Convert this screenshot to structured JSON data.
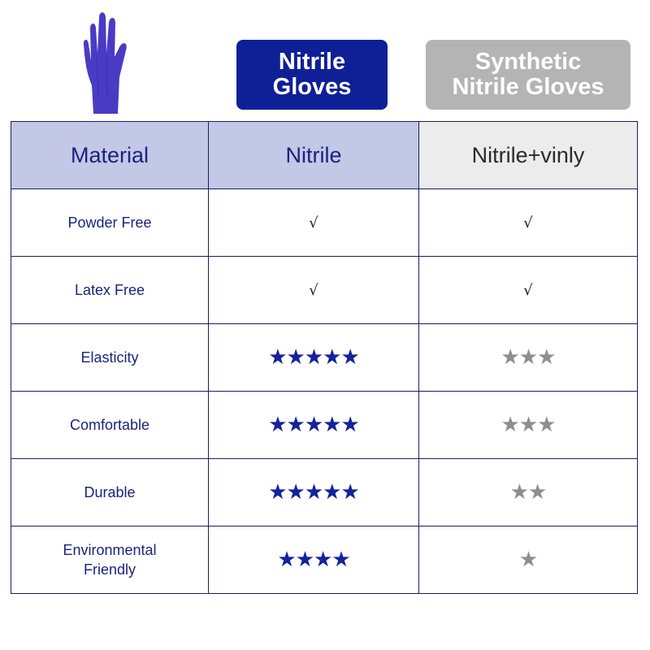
{
  "header": {
    "product_image": "purple-nitrile-glove",
    "col2_title": "Nitrile\nGloves",
    "col3_title": "Synthetic\nNitrile Gloves"
  },
  "colors": {
    "nitrile": "#0f1f96",
    "synthetic": "#b4b4b4",
    "star_blue": "#14229c",
    "star_grey": "#8e8e8e",
    "glove": "#4a3bc4"
  },
  "table": {
    "header": [
      "Material",
      "Nitrile",
      "Nitrile+vinly"
    ],
    "rows": [
      {
        "label": "Powder Free",
        "nitrile": "√",
        "synthetic": "√"
      },
      {
        "label": "Latex Free",
        "nitrile": "√",
        "synthetic": "√"
      },
      {
        "label": "Elasticity",
        "nitrile_stars": 5,
        "synthetic_stars": 3
      },
      {
        "label": "Comfortable",
        "nitrile_stars": 5,
        "synthetic_stars": 3
      },
      {
        "label": "Durable",
        "nitrile_stars": 5,
        "synthetic_stars": 2
      },
      {
        "label": "Environmental\nFriendly",
        "nitrile_stars": 4,
        "synthetic_stars": 1
      }
    ]
  }
}
